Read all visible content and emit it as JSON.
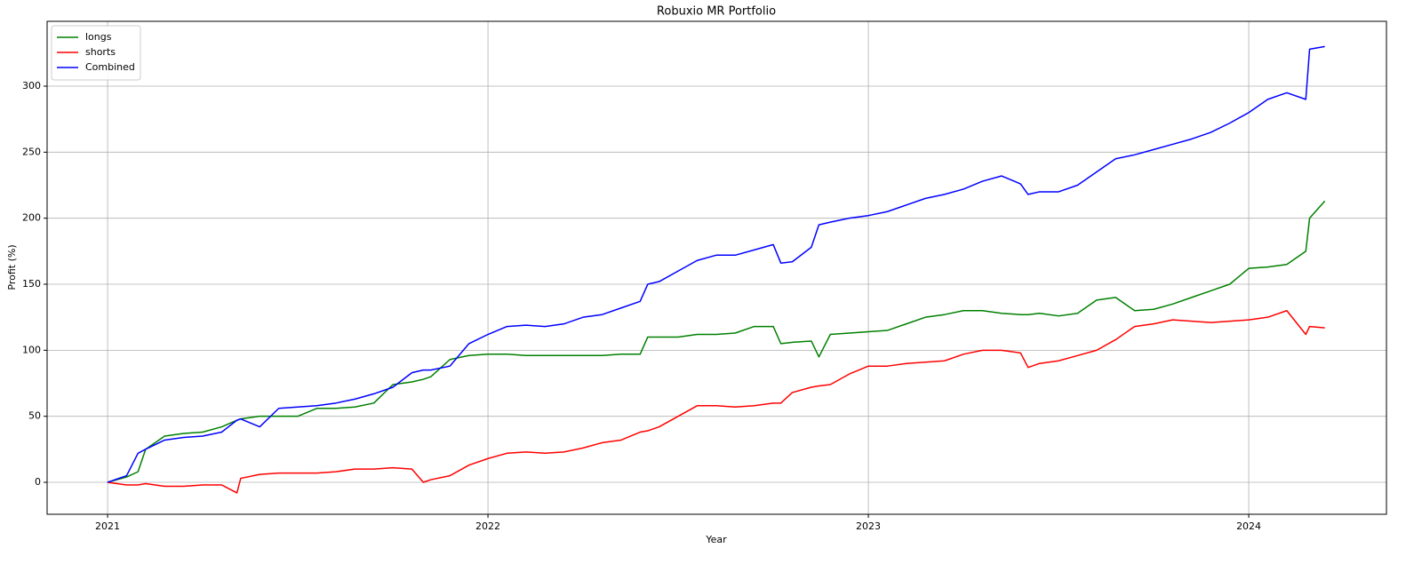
{
  "chart_data": {
    "type": "line",
    "title": "Robuxio MR Portfolio",
    "x_label": "Year",
    "y_label": "Profit (%)",
    "x": [
      2021,
      2021.05,
      2021.08,
      2021.1,
      2021.15,
      2021.2,
      2021.25,
      2021.3,
      2021.34,
      2021.35,
      2021.4,
      2021.45,
      2021.5,
      2021.55,
      2021.6,
      2021.65,
      2021.7,
      2021.75,
      2021.8,
      2021.83,
      2021.85,
      2021.9,
      2021.95,
      2022,
      2022.05,
      2022.1,
      2022.15,
      2022.2,
      2022.25,
      2022.3,
      2022.35,
      2022.4,
      2022.42,
      2022.45,
      2022.5,
      2022.55,
      2022.6,
      2022.65,
      2022.7,
      2022.75,
      2022.77,
      2022.8,
      2022.85,
      2022.87,
      2022.9,
      2022.95,
      2023,
      2023.05,
      2023.1,
      2023.15,
      2023.2,
      2023.25,
      2023.3,
      2023.35,
      2023.4,
      2023.42,
      2023.45,
      2023.5,
      2023.55,
      2023.6,
      2023.65,
      2023.7,
      2023.75,
      2023.8,
      2023.85,
      2023.9,
      2023.95,
      2024,
      2024.05,
      2024.1,
      2024.15,
      2024.16,
      2024.2
    ],
    "series": [
      {
        "name": "longs",
        "color": "#008000",
        "values": [
          0,
          4,
          8,
          25,
          35,
          37,
          38,
          42,
          47,
          48,
          50,
          50,
          50,
          56,
          56,
          57,
          60,
          74,
          76,
          78,
          80,
          93,
          96,
          97,
          97,
          96,
          96,
          96,
          96,
          96,
          97,
          97,
          110,
          110,
          110,
          112,
          112,
          113,
          118,
          118,
          105,
          106,
          107,
          95,
          112,
          113,
          114,
          115,
          120,
          125,
          127,
          130,
          130,
          128,
          127,
          127,
          128,
          126,
          128,
          138,
          140,
          130,
          131,
          135,
          140,
          145,
          150,
          162,
          163,
          165,
          175,
          200,
          213
        ]
      },
      {
        "name": "shorts",
        "color": "#ff0000",
        "values": [
          0,
          -2,
          -2,
          -1,
          -3,
          -3,
          -2,
          -2,
          -8,
          3,
          6,
          7,
          7,
          7,
          8,
          10,
          10,
          11,
          10,
          0,
          2,
          5,
          13,
          18,
          22,
          23,
          22,
          23,
          26,
          30,
          32,
          38,
          39,
          42,
          50,
          58,
          58,
          57,
          58,
          60,
          60,
          68,
          72,
          73,
          74,
          82,
          88,
          88,
          90,
          91,
          92,
          97,
          100,
          100,
          98,
          87,
          90,
          92,
          96,
          100,
          108,
          118,
          120,
          123,
          122,
          121,
          122,
          123,
          125,
          130,
          112,
          118,
          117
        ]
      },
      {
        "name": "Combined",
        "color": "#0000ff",
        "values": [
          0,
          5,
          22,
          25,
          32,
          34,
          35,
          38,
          47,
          48,
          42,
          56,
          57,
          58,
          60,
          63,
          67,
          72,
          83,
          85,
          85,
          88,
          105,
          112,
          118,
          119,
          118,
          120,
          125,
          127,
          132,
          137,
          150,
          152,
          160,
          168,
          172,
          172,
          176,
          180,
          166,
          167,
          178,
          195,
          197,
          200,
          202,
          205,
          210,
          215,
          218,
          222,
          228,
          232,
          226,
          218,
          220,
          220,
          225,
          235,
          245,
          248,
          252,
          256,
          260,
          265,
          272,
          280,
          290,
          295,
          290,
          328,
          330
        ]
      }
    ],
    "xlim": [
      2020.841,
      2024.362
    ],
    "xticks": [
      2021,
      2022,
      2023,
      2024
    ],
    "ylim": [
      -24.2,
      349.1
    ],
    "yticks": [
      0,
      50,
      100,
      150,
      200,
      250,
      300
    ],
    "grid": true,
    "legend": "upper-left"
  }
}
